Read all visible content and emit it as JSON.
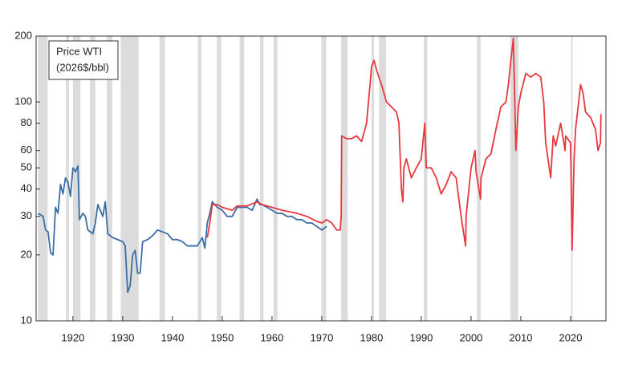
{
  "chart_data": {
    "type": "line",
    "annotation": [
      "Price WTI",
      "(2026$/bbl)"
    ],
    "log_scale": true,
    "xlim": [
      1912.6,
      2027.1
    ],
    "ylim": [
      10,
      200
    ],
    "xticks": [
      1920,
      1930,
      1940,
      1950,
      1960,
      1970,
      1980,
      1990,
      2000,
      2010,
      2020
    ],
    "yticks": [
      10,
      20,
      30,
      40,
      50,
      60,
      80,
      100,
      200
    ],
    "shading_color": "#dcdcdc",
    "shading": [
      [
        1913,
        1914.9
      ],
      [
        1918.6,
        1919.2
      ],
      [
        1920,
        1921.5
      ],
      [
        1923.4,
        1924.5
      ],
      [
        1926.8,
        1927.9
      ],
      [
        1929.6,
        1933.2
      ],
      [
        1937.4,
        1938.5
      ],
      [
        1945.1,
        1945.8
      ],
      [
        1948.9,
        1949.8
      ],
      [
        1953.5,
        1954.4
      ],
      [
        1957.6,
        1958.3
      ],
      [
        1960.3,
        1961.1
      ],
      [
        1969.9,
        1970.9
      ],
      [
        1973.9,
        1975.2
      ],
      [
        1980,
        1980.5
      ],
      [
        1981.5,
        1982.9
      ],
      [
        1990.5,
        1991.2
      ],
      [
        2001.2,
        2001.9
      ],
      [
        2007.9,
        2009.5
      ],
      [
        2020.1,
        2020.4
      ]
    ],
    "series": [
      {
        "color": "#3a6ea5",
        "x": [
          1913,
          1914,
          1914.5,
          1915,
          1915.5,
          1916,
          1916.5,
          1917,
          1917.5,
          1918,
          1918.5,
          1919,
          1919.5,
          1920,
          1920.5,
          1921,
          1921.3,
          1922,
          1922.5,
          1923,
          1924,
          1924.5,
          1925,
          1926,
          1926.5,
          1927,
          1928,
          1929,
          1930,
          1930.5,
          1931,
          1931.5,
          1932,
          1932.5,
          1933,
          1933.5,
          1934,
          1935,
          1936,
          1937,
          1938,
          1939,
          1940,
          1941,
          1942,
          1943,
          1944,
          1945,
          1946,
          1946.5,
          1947,
          1947.5,
          1948,
          1949,
          1950,
          1951,
          1952,
          1953,
          1954,
          1955,
          1956,
          1957,
          1957.5,
          1958,
          1959,
          1960,
          1961,
          1962,
          1963,
          1964,
          1965,
          1966,
          1967,
          1968,
          1969,
          1970,
          1971
        ],
        "values": [
          31,
          30,
          26,
          25.5,
          20.5,
          20,
          33,
          31,
          42,
          38,
          45,
          43,
          37,
          50,
          48,
          51,
          29,
          31,
          30,
          26,
          25,
          28,
          34,
          30,
          35,
          25,
          24,
          23.5,
          23,
          22,
          13.5,
          14.5,
          20,
          21,
          16.5,
          16.5,
          23,
          23.5,
          24.5,
          26,
          25.5,
          25,
          23.5,
          23.5,
          23,
          22,
          22,
          22,
          24,
          21.5,
          28,
          31,
          35,
          33,
          32,
          30,
          30,
          33,
          33,
          33,
          32,
          36,
          34,
          34,
          33,
          32,
          31,
          31,
          30,
          30,
          29,
          29,
          28,
          28,
          27,
          26,
          27
        ]
      },
      {
        "color": "#e8383d",
        "x": [
          1947,
          1947.5,
          1948,
          1949,
          1950,
          1952,
          1953,
          1955,
          1957,
          1958,
          1960,
          1962,
          1965,
          1967,
          1969,
          1970,
          1971,
          1972,
          1973,
          1973.7,
          1973.9,
          1974,
          1975,
          1976,
          1977,
          1978,
          1979,
          1979.7,
          1980,
          1980.5,
          1981,
          1982,
          1983,
          1984,
          1985,
          1985.5,
          1986,
          1986.3,
          1986.5,
          1987,
          1988,
          1989,
          1990,
          1990.7,
          1991,
          1992,
          1993,
          1994,
          1995,
          1996,
          1997,
          1998,
          1998.9,
          1999,
          2000,
          2000.8,
          2001,
          2001.9,
          2002,
          2003,
          2004,
          2005,
          2006,
          2007,
          2007.5,
          2008,
          2008.5,
          2009,
          2009.5,
          2010,
          2011,
          2012,
          2013,
          2014,
          2014.6,
          2015,
          2016,
          2016.5,
          2017,
          2018,
          2018.9,
          2019,
          2020,
          2020.3,
          2020.7,
          2021,
          2022,
          2022.5,
          2023,
          2024,
          2025,
          2025.5,
          2026,
          2026.1
        ],
        "values": [
          24,
          28,
          34,
          34,
          33,
          32,
          33.5,
          33.5,
          35,
          34,
          33,
          32,
          31,
          30,
          28.5,
          28,
          29,
          28,
          26,
          26,
          30,
          70,
          68,
          68,
          70,
          66,
          80,
          120,
          145,
          155,
          140,
          120,
          100,
          95,
          90,
          80,
          40,
          35,
          50,
          55,
          45,
          50,
          55,
          80,
          50,
          50,
          45,
          38,
          42,
          48,
          45,
          30,
          22,
          30,
          50,
          60,
          48,
          36,
          45,
          55,
          58,
          75,
          95,
          100,
          120,
          155,
          195,
          60,
          95,
          110,
          135,
          130,
          135,
          130,
          100,
          65,
          45,
          70,
          63,
          80,
          60,
          70,
          65,
          21,
          55,
          75,
          120,
          110,
          90,
          85,
          75,
          60,
          65,
          88
        ]
      }
    ]
  }
}
